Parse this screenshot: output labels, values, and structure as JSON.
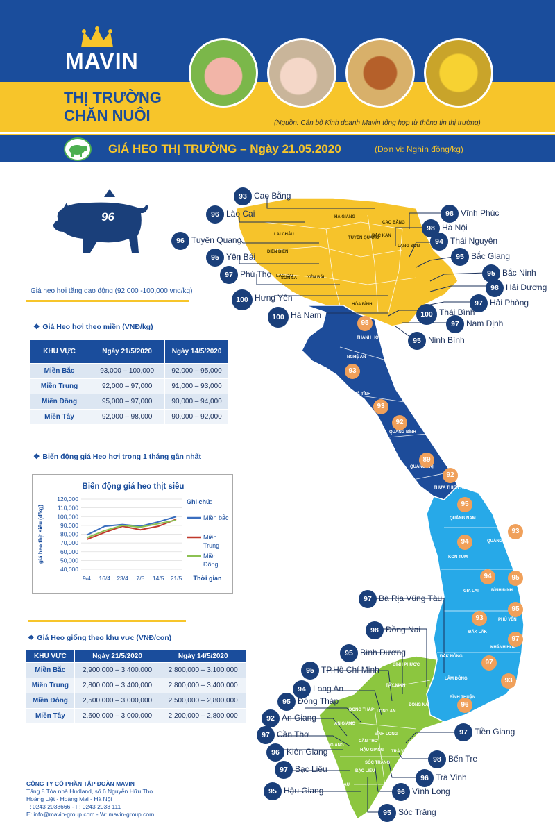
{
  "brand": {
    "name": "MAVIN"
  },
  "header": {
    "title_line1": "THỊ TRƯỜNG",
    "title_line2": "CHĂN NUÔI",
    "source": "(Nguồn: Cán bộ Kinh doanh Mavin tổng hợp từ thông tin thị trường)"
  },
  "banner": {
    "title": "GIÁ HEO THỊ TRƯỜNG – Ngày 21.05.2020",
    "unit": "(Đơn vị: Nghìn đồng/kg)"
  },
  "pig": {
    "value": "96",
    "note": "Giá heo hơi tăng dao động (92,000 -100,000 vnd/kg)"
  },
  "live_price": {
    "title": "Giá Heo hơi theo miền (VNĐ/kg)",
    "headers": [
      "KHU VỰC",
      "Ngày 21/5/2020",
      "Ngày 14/5/2020"
    ],
    "rows": [
      [
        "Miền Bắc",
        "93,000 – 100,000",
        "92,000 – 95,000"
      ],
      [
        "Miền Trung",
        "92,000 – 97,000",
        "91,000 – 93,000"
      ],
      [
        "Miền Đông",
        "95,000 – 97,000",
        "90,000 – 94,000"
      ],
      [
        "Miền Tây",
        "92,000 – 98,000",
        "90,000 – 92,000"
      ]
    ]
  },
  "trend": {
    "title": "Biến động giá Heo hơi trong 1 tháng gần nhất"
  },
  "chart_data": {
    "type": "line",
    "title": "Biến động giá heo thịt siêu",
    "xlabel": "Thời gian",
    "ylabel": "giá heo thịt siêu (đ/kg)",
    "legend_title": "Ghi chú:",
    "categories": [
      "9/4",
      "16/4",
      "23/4",
      "7/5",
      "14/5",
      "21/5"
    ],
    "ylim": [
      40000,
      120000
    ],
    "yticks": [
      "120,000",
      "110,000",
      "100,000",
      "90,000",
      "80,000",
      "70,000",
      "60,000",
      "50,000",
      "40,000"
    ],
    "series": [
      {
        "name": "Miền bắc",
        "color": "#3a6ebf",
        "values": [
          79000,
          89000,
          91000,
          89000,
          94000,
          100000
        ]
      },
      {
        "name": "Miền Trung",
        "color": "#c0392b",
        "values": [
          74000,
          82000,
          89000,
          85000,
          89000,
          97000
        ]
      },
      {
        "name": "Miền Đông",
        "color": "#8cc152",
        "values": [
          76000,
          84000,
          90000,
          88000,
          92000,
          96000
        ]
      }
    ]
  },
  "breed_price": {
    "title": "Giá Heo giống theo khu vực (VNĐ/con)",
    "headers": [
      "KHU VỰC",
      "Ngày 21/5/2020",
      "Ngày 14/5/2020"
    ],
    "rows": [
      [
        "Miền Bắc",
        "2,900,000 – 3.400.000",
        "2,800,000 – 3.100.000"
      ],
      [
        "Miền Trung",
        "2,800,000 – 3,400,000",
        "2,800,000 – 3,400,000"
      ],
      [
        "Miền Đông",
        "2,500,000 – 3,000,000",
        "2,500,000 – 2,800,000"
      ],
      [
        "Miền Tây",
        "2,600,000 – 3,000,000",
        "2,200,000 – 2,800,000"
      ]
    ]
  },
  "footer": {
    "company": "CÔNG TY CỔ PHẦN TẬP ĐOÀN MAVIN",
    "address1": "Tầng 8 Tòa nhà Hudland, số 6 Nguyễn Hữu Thọ",
    "address2": "Hoàng Liệt - Hoàng Mai - Hà Nội",
    "phone": "T: 0243 2033666 - F: 0243 2033 111",
    "email": "E: info@mavin-group.com - W: mavin-group.com"
  },
  "map": {
    "colors": {
      "north": "#f6c32b",
      "central_north": "#1d4c9a",
      "central_south": "#27a9e8",
      "south": "#8cc63f"
    },
    "provinces": [
      {
        "name": "Cao Bằng",
        "value": "93"
      },
      {
        "name": "Lào Cai",
        "value": "96"
      },
      {
        "name": "Tuyên Quang",
        "value": "96"
      },
      {
        "name": "Yên Bái",
        "value": "95"
      },
      {
        "name": "Phú Thọ",
        "value": "97"
      },
      {
        "name": "Hưng Yên",
        "value": "100"
      },
      {
        "name": "Hà Nam",
        "value": "100"
      },
      {
        "name": "Vĩnh Phúc",
        "value": "98"
      },
      {
        "name": "Hà Nội",
        "value": "98"
      },
      {
        "name": "Thái Nguyên",
        "value": "94"
      },
      {
        "name": "Bắc Giang",
        "value": "95"
      },
      {
        "name": "Bắc Ninh",
        "value": "95"
      },
      {
        "name": "Hải Dương",
        "value": "98"
      },
      {
        "name": "Hải Phòng",
        "value": "97"
      },
      {
        "name": "Thái Bình",
        "value": "100"
      },
      {
        "name": "Nam Định",
        "value": "97"
      },
      {
        "name": "Ninh Bình",
        "value": "95"
      },
      {
        "name": "Bà Rịa Vũng Tàu",
        "value": "97"
      },
      {
        "name": "Đồng Nai",
        "value": "98"
      },
      {
        "name": "Bình Dương",
        "value": "95"
      },
      {
        "name": "TP.Hồ Chí Minh",
        "value": "95"
      },
      {
        "name": "Long An",
        "value": "94"
      },
      {
        "name": "Đồng Tháp",
        "value": "95"
      },
      {
        "name": "An Giang",
        "value": "92"
      },
      {
        "name": "Cần Thơ",
        "value": "97"
      },
      {
        "name": "Kiên Giang",
        "value": "96"
      },
      {
        "name": "Bạc Liêu",
        "value": "97"
      },
      {
        "name": "Hậu Giang",
        "value": "95"
      },
      {
        "name": "Tiền Giang",
        "value": "97"
      },
      {
        "name": "Bến Tre",
        "value": "98"
      },
      {
        "name": "Trà Vinh",
        "value": "96"
      },
      {
        "name": "Vĩnh Long",
        "value": "96"
      },
      {
        "name": "Sóc Trăng",
        "value": "95"
      }
    ],
    "inner_values": [
      "95",
      "93",
      "93",
      "92",
      "89",
      "92",
      "95",
      "94",
      "93",
      "94",
      "95",
      "93",
      "95",
      "97",
      "97",
      "93",
      "96"
    ],
    "inner_labels": [
      "HÀ GIANG",
      "LAI CHÂU",
      "ĐIỆN BIÊN",
      "SƠN LA",
      "TUYÊN QUANG",
      "BẮC KẠN",
      "CAO BẰNG",
      "LẠNG SƠN",
      "HÒA BÌNH",
      "THANH HÓA",
      "NGHỆ AN",
      "HÀ TĨNH",
      "QUẢNG BÌNH",
      "QUẢNG TRỊ",
      "THỪA THIÊN HUẾ",
      "QUẢNG NAM",
      "QUẢNG NGÃI",
      "KON TUM",
      "GIA LAI",
      "BÌNH ĐỊNH",
      "ĐẮK LẮK",
      "PHÚ YÊN",
      "KHÁNH HÒA",
      "ĐẮK NÔNG",
      "LÂM ĐỒNG",
      "BÌNH PHƯỚC",
      "TÂY NINH",
      "LONG AN",
      "ĐỒNG NAI",
      "BÌNH THUẬN",
      "ĐỒNG THÁP",
      "AN GIANG",
      "KIÊN GIANG",
      "CẦN THƠ",
      "VĨNH LONG",
      "SÓC TRĂNG",
      "TRÀ VINH",
      "BẠC LIÊU",
      "CÀ MAU",
      "HẬU GIANG",
      "LÀO CAI",
      "YÊN BÁI"
    ]
  }
}
